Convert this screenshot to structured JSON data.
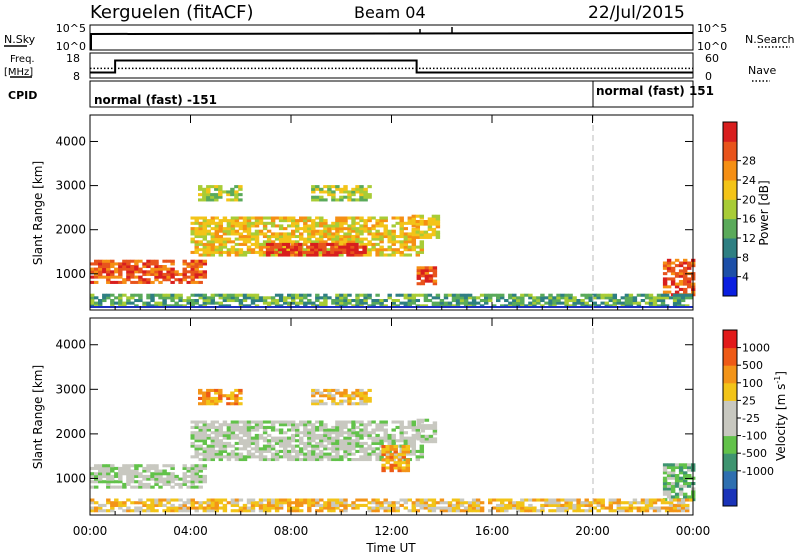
{
  "header": {
    "station": "Kerguelen (fitACF)",
    "beam": "Beam 04",
    "date": "22/Jul/2015"
  },
  "nsky_panel": {
    "left_label": "N.Sky",
    "right_label": "N.Search",
    "left_ticks": [
      "10^5",
      "10^0"
    ],
    "right_ticks": [
      "10^5",
      "10^0"
    ]
  },
  "freq_panel": {
    "left_label": "Freq.",
    "left_unit": "[MHz]",
    "right_label": "Nave",
    "left_ticks": [
      "18",
      "8"
    ],
    "right_ticks": [
      "60",
      "0"
    ],
    "freq_series": {
      "x_hours": [
        0,
        1.0,
        1.0,
        13.0,
        13.0,
        24
      ],
      "values": [
        10.2,
        10.2,
        15.0,
        15.0,
        10.2,
        10.2
      ]
    },
    "nave_series": {
      "x_hours": [
        0,
        24
      ],
      "values": [
        23,
        23
      ]
    }
  },
  "cpid": {
    "label": "CPID",
    "segments": [
      {
        "start_hour": 0,
        "text": "normal (fast) -151"
      },
      {
        "start_hour": 20,
        "text": "normal (fast) 151"
      }
    ]
  },
  "power_panel": {
    "ylabel": "Slant Range [km]",
    "ylim": [
      180,
      4600
    ],
    "yticks": [
      1000,
      2000,
      3000,
      4000
    ],
    "colorbar_label": "Power [dB]",
    "colorbar_ticks": [
      "4",
      "8",
      "12",
      "16",
      "20",
      "24",
      "28"
    ],
    "colors": [
      "#0a1fe0",
      "#1c4fa8",
      "#2e7f82",
      "#5aaa5a",
      "#a8cc36",
      "#f3c418",
      "#f58f14",
      "#e8541c",
      "#d81e1e"
    ]
  },
  "velocity_panel": {
    "ylabel": "Slant Range [km]",
    "ylim": [
      180,
      4600
    ],
    "yticks": [
      1000,
      2000,
      3000,
      4000
    ],
    "colorbar_label": "Velocity [m s",
    "colorbar_label_sup": "-1",
    "colorbar_label_end": "]",
    "colorbar_ticks": [
      "1000",
      "500",
      "100",
      "25",
      "-25",
      "-100",
      "-500",
      "-1000"
    ],
    "colors": [
      "#1a33b8",
      "#2e6fb0",
      "#3e9470",
      "#62c24a",
      "#c8c8c0",
      "#c8c8c0",
      "#f2c418",
      "#f39418",
      "#ee5a16",
      "#e21a1a"
    ]
  },
  "x_axis": {
    "label": "Time UT",
    "ticks": [
      "00:00",
      "04:00",
      "08:00",
      "12:00",
      "16:00",
      "20:00",
      "00:00"
    ],
    "range_hours": [
      0,
      24
    ]
  },
  "chart_data": {
    "type": "heatmap",
    "x_unit": "hours UT",
    "y_unit": "km",
    "power_echo_regions": [
      {
        "t0": 0.0,
        "t1": 4.5,
        "r0": 780,
        "r1": 1320,
        "level": 7
      },
      {
        "t0": 4.0,
        "t1": 13.2,
        "r0": 1400,
        "r1": 2300,
        "level": 5
      },
      {
        "t0": 7.0,
        "t1": 11.0,
        "r0": 1400,
        "r1": 1700,
        "level": 8
      },
      {
        "t0": 4.3,
        "t1": 6.0,
        "r0": 2650,
        "r1": 3000,
        "level": 4
      },
      {
        "t0": 8.8,
        "t1": 11.2,
        "r0": 2650,
        "r1": 3000,
        "level": 4
      },
      {
        "t0": 12.8,
        "t1": 13.8,
        "r0": 1800,
        "r1": 2300,
        "level": 5
      },
      {
        "t0": 13.0,
        "t1": 13.8,
        "r0": 750,
        "r1": 1150,
        "level": 7
      },
      {
        "t0": 22.8,
        "t1": 24.0,
        "r0": 500,
        "r1": 1300,
        "level": 7
      },
      {
        "t0": 0.0,
        "t1": 24.0,
        "r0": 250,
        "r1": 500,
        "level": 3
      }
    ],
    "velocity_echo_regions": [
      {
        "t0": 0.0,
        "t1": 4.5,
        "r0": 780,
        "r1": 1320,
        "level": 4
      },
      {
        "t0": 4.0,
        "t1": 13.2,
        "r0": 1400,
        "r1": 2300,
        "level": 4
      },
      {
        "t0": 11.6,
        "t1": 12.6,
        "r0": 1150,
        "r1": 1700,
        "level": 7
      },
      {
        "t0": 4.3,
        "t1": 6.0,
        "r0": 2650,
        "r1": 3000,
        "level": 7
      },
      {
        "t0": 8.8,
        "t1": 11.2,
        "r0": 2650,
        "r1": 3000,
        "level": 6
      },
      {
        "t0": 13.0,
        "t1": 13.8,
        "r0": 1800,
        "r1": 2300,
        "level": 4
      },
      {
        "t0": 22.8,
        "t1": 24.0,
        "r0": 500,
        "r1": 1300,
        "level": 3
      },
      {
        "t0": 0.0,
        "t1": 24.0,
        "r0": 250,
        "r1": 500,
        "level": 6
      }
    ]
  }
}
